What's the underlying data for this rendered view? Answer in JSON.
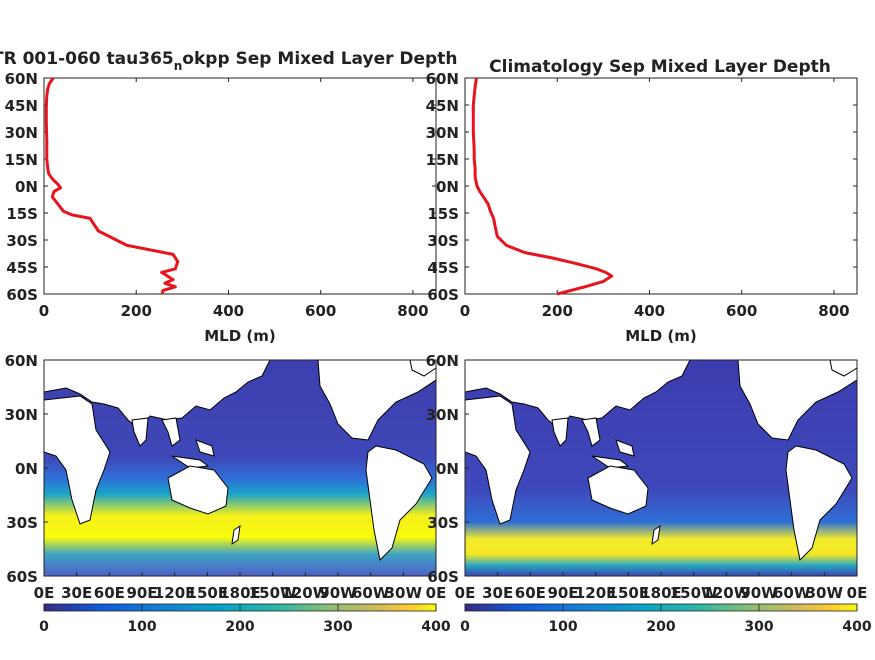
{
  "colors": {
    "profile_line": "#e8141c",
    "land": "#ffffff",
    "coast": "#000000"
  },
  "chart_data": [
    {
      "type": "line",
      "title_prefix": "TR 001-060 tau365",
      "title_sub": "n",
      "title_suffix": "okpp Sep Mixed Layer Depth",
      "xlabel": "MLD (m)",
      "xlim": [
        0,
        850
      ],
      "ylim": [
        -60,
        60
      ],
      "xticks": [
        "0",
        "200",
        "400",
        "600",
        "800"
      ],
      "yticks": [
        "60N",
        "45N",
        "30N",
        "15N",
        "0N",
        "15S",
        "30S",
        "45S",
        "60S"
      ],
      "series": [
        {
          "x": [
            20,
            12,
            8,
            6,
            5,
            5,
            6,
            6,
            8,
            10,
            15,
            22,
            30,
            36,
            22,
            18,
            30,
            42,
            60,
            100,
            118,
            180,
            280,
            290,
            285,
            255,
            280,
            262,
            285,
            258,
            256
          ],
          "y": [
            60,
            57,
            54,
            50,
            45,
            35,
            25,
            15,
            10,
            7,
            5,
            3,
            1,
            -1,
            -3,
            -6,
            -10,
            -14,
            -16,
            -18,
            -25,
            -33,
            -38,
            -42,
            -46,
            -48,
            -52,
            -54,
            -56,
            -58,
            -60
          ]
        }
      ]
    },
    {
      "type": "line",
      "title": "Climatology Sep Mixed Layer Depth",
      "xlabel": "MLD (m)",
      "xlim": [
        0,
        850
      ],
      "ylim": [
        -60,
        60
      ],
      "xticks": [
        "0",
        "200",
        "400",
        "600",
        "800"
      ],
      "yticks": [
        "60N",
        "45N",
        "30N",
        "15N",
        "0N",
        "15S",
        "30S",
        "45S",
        "60S"
      ],
      "series": [
        {
          "x": [
            25,
            22,
            20,
            18,
            18,
            18,
            20,
            20,
            22,
            22,
            26,
            32,
            40,
            50,
            55,
            62,
            65,
            70,
            90,
            130,
            190,
            240,
            285,
            305,
            318,
            300,
            260,
            200
          ],
          "y": [
            60,
            55,
            50,
            45,
            40,
            30,
            20,
            15,
            10,
            5,
            0,
            -3,
            -6,
            -10,
            -14,
            -18,
            -22,
            -28,
            -33,
            -37,
            -40,
            -43,
            -46,
            -48,
            -50,
            -53,
            -56,
            -60
          ]
        }
      ]
    },
    {
      "type": "heatmap",
      "xticks": [
        "0E",
        "30E",
        "60E",
        "90E",
        "120E",
        "150E",
        "180E",
        "150W",
        "120W",
        "90W",
        "60W",
        "30W",
        "0E"
      ],
      "yticks": [
        "60N",
        "30N",
        "0N",
        "30S",
        "60S"
      ],
      "colorbar": {
        "ticks": [
          "0",
          "100",
          "200",
          "300",
          "400"
        ],
        "range": [
          0,
          400
        ]
      }
    },
    {
      "type": "heatmap",
      "xticks": [
        "0E",
        "30E",
        "60E",
        "90E",
        "120E",
        "150E",
        "180E",
        "150W",
        "120W",
        "90W",
        "60W",
        "30W",
        "0E"
      ],
      "yticks": [
        "60N",
        "30N",
        "0N",
        "30S",
        "60S"
      ],
      "colorbar": {
        "ticks": [
          "0",
          "100",
          "200",
          "300",
          "400"
        ],
        "range": [
          0,
          400
        ]
      }
    }
  ]
}
